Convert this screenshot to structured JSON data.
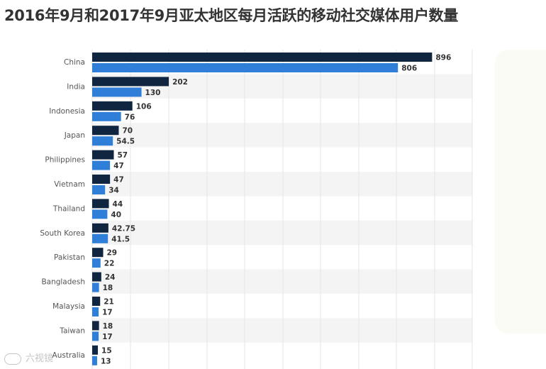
{
  "title": "2016年9月和2017年9月亚太地区每月活跃的移动社交媒体用户数量",
  "watermark": {
    "text": "六视镜",
    "logo": "camera-logo"
  },
  "colors": {
    "series_2016": "#0f2540",
    "series_2017": "#2f7ed8",
    "grid": "#e6e6e6",
    "band": "#f4f4f4"
  },
  "chart_data": {
    "type": "bar",
    "orientation": "horizontal",
    "title": "2016年9月和2017年9月亚太地区每月活跃的移动社交媒体用户数量",
    "categories": [
      "China",
      "India",
      "Indonesia",
      "Japan",
      "Philippines",
      "Vietnam",
      "Thailand",
      "South Korea",
      "Pakistan",
      "Bangladesh",
      "Malaysia",
      "Taiwan",
      "Australia"
    ],
    "series": [
      {
        "values": [
          896,
          202,
          106,
          70,
          57,
          47,
          44,
          42.75,
          29,
          24,
          21,
          18,
          15
        ],
        "color": "#0f2540"
      },
      {
        "values": [
          806,
          130,
          76,
          54.5,
          47,
          34,
          40,
          41.5,
          22,
          18,
          17,
          17,
          13
        ],
        "color": "#2f7ed8"
      }
    ],
    "xlim": [
      0,
      1000
    ],
    "grid": true,
    "legend": "none"
  }
}
